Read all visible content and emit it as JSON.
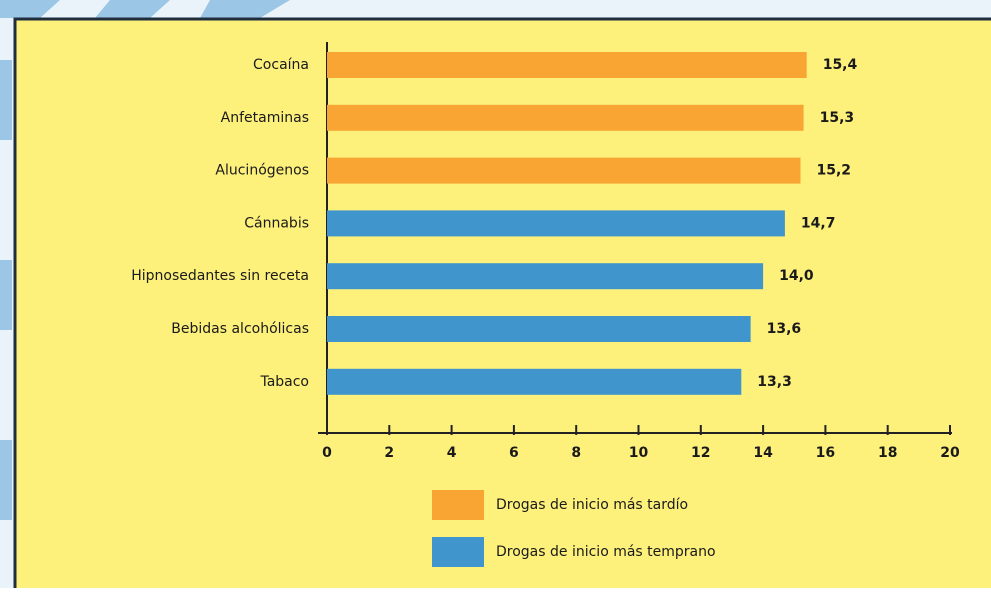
{
  "chart_data": {
    "type": "barh",
    "categories": [
      "Cocaína",
      "Anfetaminas",
      "Alucinógenos",
      "Cánnabis",
      "Hipnosedantes sin receta",
      "Bebidas alcohólicas",
      "Tabaco"
    ],
    "series": [
      {
        "name": "Drogas de inicio más tardío",
        "color": "#f9a533",
        "values": [
          15.4,
          15.3,
          15.2,
          null,
          null,
          null,
          null
        ],
        "value_labels": [
          "15,4",
          "15,3",
          "15,2",
          null,
          null,
          null,
          null
        ]
      },
      {
        "name": "Drogas de inicio más temprano",
        "color": "#3f95cc",
        "values": [
          null,
          null,
          null,
          14.7,
          14.0,
          13.6,
          13.3
        ],
        "value_labels": [
          null,
          null,
          null,
          "14,7",
          "14,0",
          "13,6",
          "13,3"
        ]
      }
    ],
    "xlim": [
      0,
      20
    ],
    "xticks": [
      0,
      2,
      4,
      6,
      8,
      10,
      12,
      14,
      16,
      18,
      20
    ],
    "legend": "bottom"
  }
}
